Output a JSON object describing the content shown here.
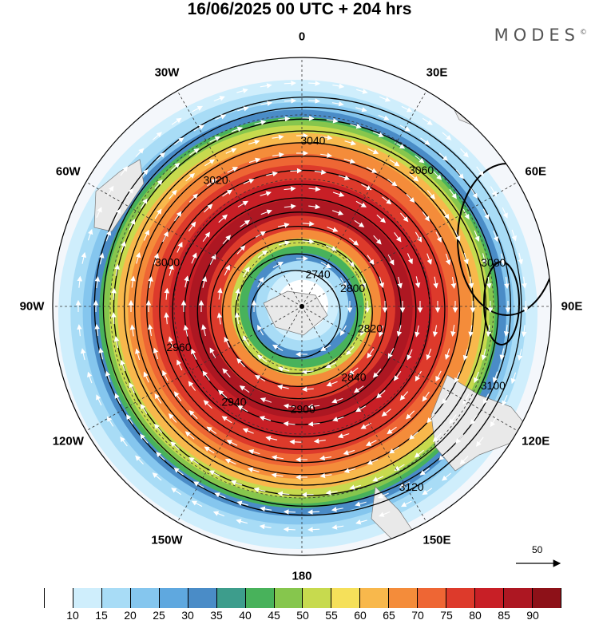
{
  "title": "16/06/2025  00 UTC  + 204 hrs",
  "brand": "MODES",
  "brand_mark": "©",
  "longitude_labels": [
    "0",
    "30E",
    "60E",
    "90E",
    "120E",
    "150E",
    "180",
    "150W",
    "120W",
    "90W",
    "60W",
    "30W"
  ],
  "contours": {
    "labels": [
      "2740",
      "2800",
      "2820",
      "2840",
      "2900",
      "2940",
      "2960",
      "3000",
      "3020",
      "3040",
      "3060",
      "3080",
      "3100",
      "3120"
    ]
  },
  "wind_scale": {
    "label": "50"
  },
  "colorbar": {
    "labels": [
      "10",
      "15",
      "20",
      "25",
      "30",
      "35",
      "40",
      "45",
      "50",
      "55",
      "60",
      "65",
      "70",
      "75",
      "80",
      "85",
      "90"
    ],
    "colors": [
      "#ffffff",
      "#cfeefc",
      "#a8dcf6",
      "#85c6ee",
      "#5fa8df",
      "#4a8cc7",
      "#3d9d8c",
      "#48b25b",
      "#86c64d",
      "#c7da4e",
      "#f5e05a",
      "#f8b84c",
      "#f48c3a",
      "#ee6634",
      "#dd3a2b",
      "#c81f26",
      "#ad1722",
      "#8d1118"
    ]
  }
}
